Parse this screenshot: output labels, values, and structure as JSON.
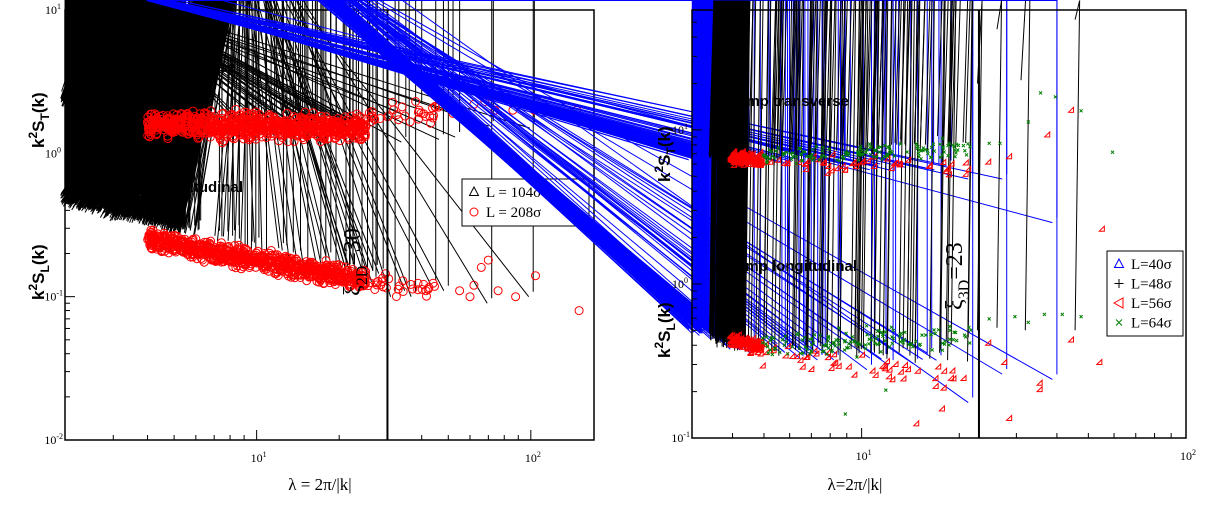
{
  "chart_data": [
    {
      "type": "scatter",
      "title": "",
      "xlabel": "λ = 2π/|k|",
      "ylabel_upper": "k²S_T(k)",
      "ylabel_lower": "k²S_L(k)",
      "x_scale": "log",
      "y_scale": "log",
      "xlim": [
        2.0,
        170
      ],
      "ylim": [
        0.01,
        10
      ],
      "x_ticks": [
        {
          "v": 10,
          "b": "10",
          "e": "1"
        },
        {
          "v": 100,
          "b": "10",
          "e": "2"
        }
      ],
      "y_ticks": [
        {
          "v": 0.01,
          "b": "10",
          "e": "-2"
        },
        {
          "v": 0.1,
          "b": "10",
          "e": "-1"
        },
        {
          "v": 1,
          "b": "10",
          "e": "0"
        },
        {
          "v": 10,
          "b": "10",
          "e": "1"
        }
      ],
      "annotations": [
        {
          "id": "transverse",
          "text": "Champ transverse"
        },
        {
          "id": "longitudinal",
          "text": "Champ longitudinal"
        },
        {
          "id": "xi",
          "base": "ξ",
          "sub": "2D",
          "rest": "=30"
        }
      ],
      "vline": {
        "x": 30
      },
      "legend_position": "right",
      "series": [
        {
          "name": "L = 104σ",
          "marker": "triangle",
          "color": "#000000",
          "bands": [
            {
              "x": [
                2.0,
                5.5
              ],
              "y": [
                2.45,
                1.8
              ],
              "spread": 0.09,
              "n": 650
            },
            {
              "x": [
                5.5,
                30
              ],
              "y": [
                1.8,
                1.5
              ],
              "spread": 0.1,
              "n": 40
            },
            {
              "x": [
                2.0,
                5.5
              ],
              "y": [
                0.48,
                0.3
              ],
              "spread": 0.09,
              "n": 650
            },
            {
              "x": [
                5.5,
                30
              ],
              "y": [
                0.3,
                0.13
              ],
              "spread": 0.12,
              "n": 40
            }
          ],
          "points": [
            [
              33,
              2.0
            ],
            [
              35,
              1.2
            ],
            [
              40,
              2.05
            ],
            [
              48,
              1.25
            ],
            [
              52,
              2.0
            ],
            [
              73,
              1.55
            ],
            [
              103,
              1.5
            ],
            [
              55,
              1.3
            ],
            [
              36,
              0.11
            ],
            [
              38,
              0.1
            ],
            [
              45,
              0.12
            ],
            [
              50,
              0.11
            ],
            [
              72,
              0.09
            ],
            [
              102,
              0.1
            ],
            [
              32,
              0.1
            ]
          ]
        },
        {
          "name": "L = 208σ",
          "marker": "circle",
          "color": "#ff0000",
          "bands": [
            {
              "x": [
                4.0,
                25
              ],
              "y": [
                1.6,
                1.5
              ],
              "spread": 0.15,
              "n": 800
            },
            {
              "x": [
                25,
                45
              ],
              "y": [
                1.8,
                1.9
              ],
              "spread": 0.12,
              "n": 30
            },
            {
              "x": [
                4.0,
                25
              ],
              "y": [
                0.25,
                0.13
              ],
              "spread": 0.12,
              "n": 800
            },
            {
              "x": [
                25,
                45
              ],
              "y": [
                0.13,
                0.11
              ],
              "spread": 0.12,
              "n": 30
            }
          ],
          "points": [
            [
              30,
              1.8
            ],
            [
              38,
              2.3
            ],
            [
              46,
              2.1
            ],
            [
              52,
              1.9
            ],
            [
              56,
              1.8
            ],
            [
              62,
              2.2
            ],
            [
              68,
              2.3
            ],
            [
              74,
              2.0
            ],
            [
              86,
              2.0
            ],
            [
              103,
              2.0
            ],
            [
              147,
              2.0
            ],
            [
              60,
              1.65
            ],
            [
              55,
              0.11
            ],
            [
              60,
              0.1
            ],
            [
              66,
              0.16
            ],
            [
              70,
              0.18
            ],
            [
              76,
              0.11
            ],
            [
              88,
              0.1
            ],
            [
              104,
              0.14
            ],
            [
              150,
              0.08
            ],
            [
              62,
              0.12
            ]
          ]
        }
      ]
    },
    {
      "type": "scatter",
      "title": "",
      "xlabel": "λ=2π/|k|",
      "ylabel_upper": "k²S_T(k)",
      "ylabel_lower": "k²S_L(k)",
      "x_scale": "log",
      "y_scale": "log",
      "xlim": [
        3.0,
        100
      ],
      "ylim": [
        0.1,
        60
      ],
      "x_ticks": [
        {
          "v": 10,
          "b": "10",
          "e": "1"
        },
        {
          "v": 100,
          "b": "10",
          "e": "2"
        }
      ],
      "y_ticks": [
        {
          "v": 0.1,
          "b": "10",
          "e": "-1"
        },
        {
          "v": 1,
          "b": "10",
          "e": "0"
        },
        {
          "v": 10,
          "b": "10",
          "e": "1"
        }
      ],
      "annotations": [
        {
          "id": "transverse",
          "text": "Champ transverse"
        },
        {
          "id": "longitudinal",
          "text": "Champ longitudinal"
        },
        {
          "id": "xi",
          "base": "ξ",
          "sub": "3D",
          "rest": "=23"
        }
      ],
      "vline": {
        "x": 23
      },
      "legend_position": "right",
      "series": [
        {
          "name": "L=40σ",
          "marker": "triangle",
          "color": "#0000ff",
          "bands": [
            {
              "x": [
                3.0,
                4.0
              ],
              "y": [
                7.0,
                6.8
              ],
              "spread": 0.07,
              "n": 150
            },
            {
              "x": [
                4.0,
                20
              ],
              "y": [
                6.5,
                5.5
              ],
              "spread": 0.07,
              "n": 30
            },
            {
              "x": [
                3.0,
                4.0
              ],
              "y": [
                0.55,
                0.45
              ],
              "spread": 0.08,
              "n": 150
            },
            {
              "x": [
                4.0,
                20
              ],
              "y": [
                0.42,
                0.3
              ],
              "spread": 0.12,
              "n": 30
            }
          ],
          "points": [
            [
              22,
              4.8
            ],
            [
              28,
              4.8
            ],
            [
              40,
              2.5
            ],
            [
              22,
              0.17
            ],
            [
              28,
              0.26
            ],
            [
              40,
              0.24
            ]
          ]
        },
        {
          "name": "L=48σ",
          "marker": "plus",
          "color": "#000000",
          "bands": [
            {
              "x": [
                3.5,
                4.5
              ],
              "y": [
                6.8,
                6.5
              ],
              "spread": 0.07,
              "n": 120
            },
            {
              "x": [
                4.5,
                22
              ],
              "y": [
                6.5,
                8.5
              ],
              "spread": 0.1,
              "n": 60
            },
            {
              "x": [
                3.5,
                4.5
              ],
              "y": [
                0.45,
                0.4
              ],
              "spread": 0.08,
              "n": 120
            },
            {
              "x": [
                4.5,
                22
              ],
              "y": [
                0.38,
                0.35
              ],
              "spread": 0.12,
              "n": 60
            }
          ],
          "points": [
            [
              23.5,
              20
            ],
            [
              32,
              21
            ],
            [
              27,
              45
            ],
            [
              47,
              52
            ],
            [
              23.5,
              0.5
            ],
            [
              27,
              0.52
            ],
            [
              33,
              0.5
            ],
            [
              47,
              0.5
            ],
            [
              22,
              0.45
            ]
          ]
        },
        {
          "name": "L=56σ",
          "marker": "triangle-left",
          "color": "#ff0000",
          "bands": [
            {
              "x": [
                4.0,
                5.0
              ],
              "y": [
                6.4,
                6.2
              ],
              "spread": 0.07,
              "n": 120
            },
            {
              "x": [
                5.0,
                22
              ],
              "y": [
                6.0,
                5.5
              ],
              "spread": 0.1,
              "n": 50
            },
            {
              "x": [
                4.0,
                5.0
              ],
              "y": [
                0.42,
                0.38
              ],
              "spread": 0.08,
              "n": 120
            },
            {
              "x": [
                5.0,
                22
              ],
              "y": [
                0.35,
                0.22
              ],
              "spread": 0.16,
              "n": 50
            }
          ],
          "points": [
            [
              25,
              6
            ],
            [
              29,
              6.5
            ],
            [
              38,
              9
            ],
            [
              45,
              13
            ],
            [
              56,
              2.2
            ],
            [
              15,
              0.12
            ],
            [
              18,
              0.15
            ],
            [
              25,
              0.4
            ],
            [
              28,
              0.3
            ],
            [
              36,
              0.22
            ],
            [
              36,
              0.2
            ],
            [
              45,
              0.42
            ],
            [
              55,
              0.3
            ],
            [
              29,
              0.13
            ]
          ]
        },
        {
          "name": "L=64σ",
          "marker": "x",
          "color": "#008000",
          "bands": [
            {
              "x": [
                5.0,
                22
              ],
              "y": [
                6.5,
                7.5
              ],
              "spread": 0.1,
              "n": 140
            },
            {
              "x": [
                5.0,
                22
              ],
              "y": [
                0.38,
                0.45
              ],
              "spread": 0.14,
              "n": 140
            }
          ],
          "points": [
            [
              25,
              8
            ],
            [
              27,
              8
            ],
            [
              33,
              11
            ],
            [
              36,
              17
            ],
            [
              40,
              16
            ],
            [
              48,
              13
            ],
            [
              60,
              7
            ],
            [
              25,
              0.58
            ],
            [
              30,
              0.6
            ],
            [
              33,
              0.55
            ],
            [
              37,
              0.62
            ],
            [
              42,
              0.62
            ],
            [
              48,
              0.6
            ],
            [
              62,
              0.7
            ],
            [
              9,
              0.14
            ],
            [
              12,
              0.2
            ]
          ]
        }
      ]
    }
  ]
}
